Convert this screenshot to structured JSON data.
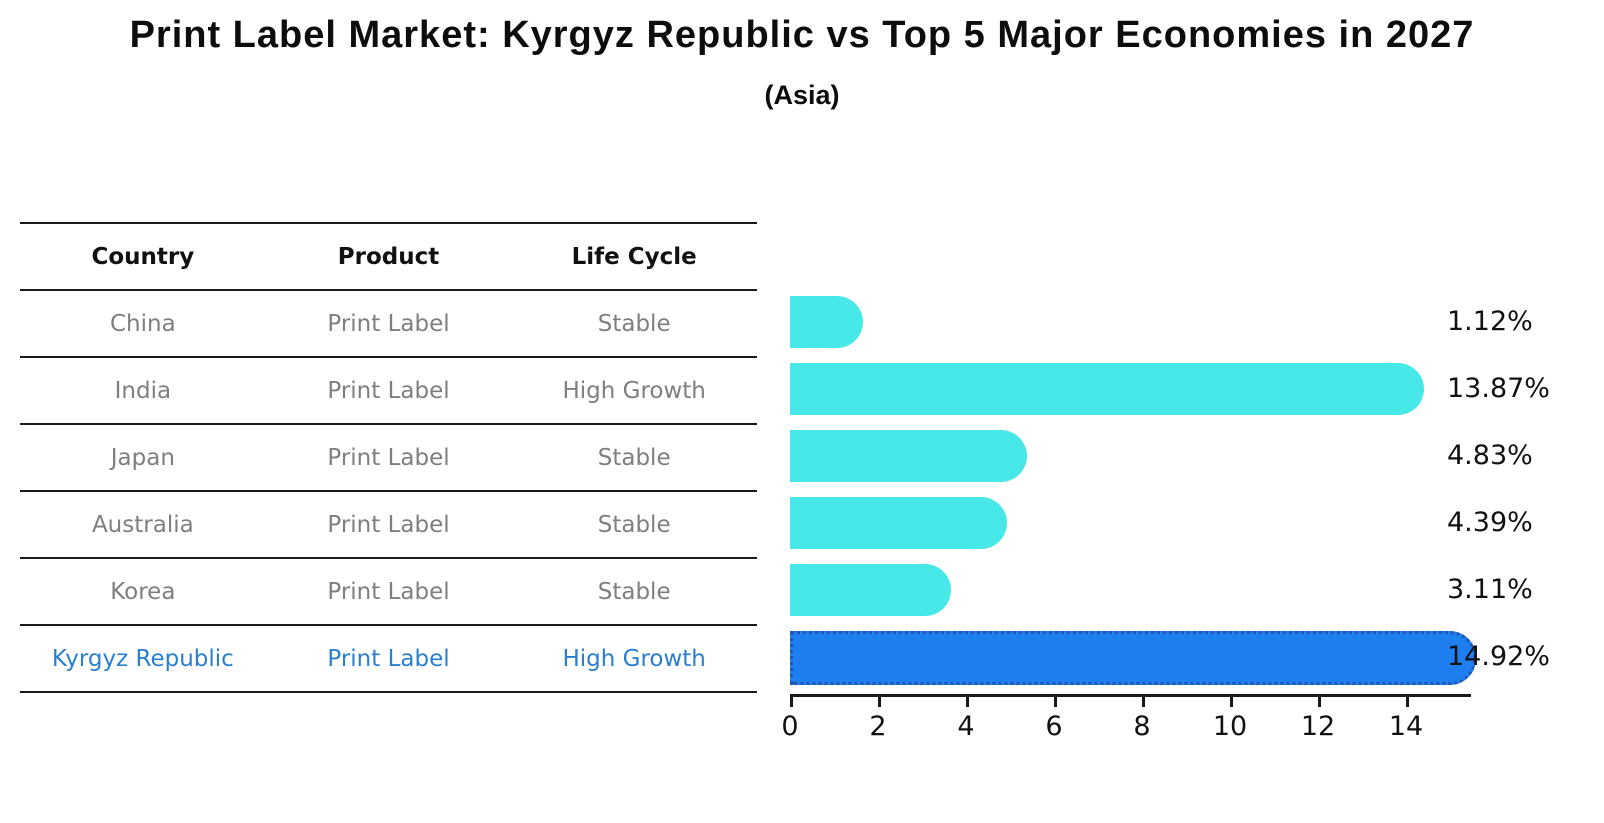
{
  "title": "Print Label Market: Kyrgyz Republic vs Top 5 Major Economies in 2027",
  "subtitle": "(Asia)",
  "table": {
    "headers": [
      "Country",
      "Product",
      "Life Cycle"
    ]
  },
  "rows": [
    {
      "country": "China",
      "product": "Print Label",
      "life_cycle": "Stable",
      "value": 1.12,
      "value_label": "1.12%",
      "highlight": false
    },
    {
      "country": "India",
      "product": "Print Label",
      "life_cycle": "High Growth",
      "value": 13.87,
      "value_label": "13.87%",
      "highlight": false
    },
    {
      "country": "Japan",
      "product": "Print Label",
      "life_cycle": "Stable",
      "value": 4.83,
      "value_label": "4.83%",
      "highlight": false
    },
    {
      "country": "Australia",
      "product": "Print Label",
      "life_cycle": "Stable",
      "value": 4.39,
      "value_label": "4.39%",
      "highlight": false
    },
    {
      "country": "Korea",
      "product": "Print Label",
      "life_cycle": "Stable",
      "value": 3.11,
      "value_label": "3.11%",
      "highlight": false
    },
    {
      "country": "Kyrgyz Republic",
      "product": "Print Label",
      "life_cycle": "High Growth",
      "value": 14.92,
      "value_label": "14.92%",
      "highlight": true
    }
  ],
  "chart_data": {
    "type": "bar",
    "orientation": "horizontal",
    "title": "Print Label Market: Kyrgyz Republic vs Top 5 Major Economies in 2027",
    "subtitle": "(Asia)",
    "categories": [
      "China",
      "India",
      "Japan",
      "Australia",
      "Korea",
      "Kyrgyz Republic"
    ],
    "values": [
      1.12,
      13.87,
      4.83,
      4.39,
      3.11,
      14.92
    ],
    "value_labels": [
      "1.12%",
      "13.87%",
      "4.83%",
      "4.39%",
      "3.11%",
      "14.92%"
    ],
    "xticks": [
      0,
      2,
      4,
      6,
      8,
      10,
      12,
      14
    ],
    "xlim": [
      0,
      15.5
    ],
    "grid": false,
    "legend": "none",
    "bar_color": "#46E8E8",
    "highlight_bar_color": "#1E80F0",
    "highlight_border_color": "#2356B0",
    "highlight_text_color": "#2B7FD0",
    "highlight_index": 5
  }
}
